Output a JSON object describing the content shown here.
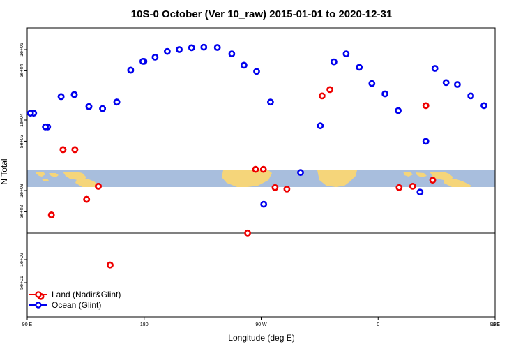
{
  "chart_data": {
    "type": "scatter",
    "title": "10S-0 October (Ver 10_raw)   2015-01-01 to 2020-12-31",
    "xlabel": "Longitude (deg E)",
    "ylabel": "N Total",
    "y_scale": "log",
    "x_tick_labels": [
      "90 E",
      "180",
      "90 W",
      "0",
      "90 E",
      "180"
    ],
    "upper_y_tick_labels": [
      "1e+05",
      "5e+04",
      "1e+04",
      "5e+03",
      "1e+03",
      "5e+02"
    ],
    "lower_y_tick_labels": [
      "1e+02",
      "5e+01"
    ],
    "colors": {
      "land": "#ee0000",
      "ocean": "#0000ee",
      "band": "#a8bedd",
      "landmass": "#f5d57a"
    },
    "legend": {
      "position": "bottom-left",
      "entries": [
        {
          "label": "Land (Nadir&Glint)",
          "color": "#ee0000"
        },
        {
          "label": "Ocean (Glint)",
          "color": "#0000ee"
        }
      ]
    },
    "series": [
      {
        "name": "Land (Nadir&Glint)",
        "color": "#ee0000",
        "points": [
          [
            108.6,
            450
          ],
          [
            117.6,
            3800
          ],
          [
            126.7,
            3800
          ],
          [
            135.7,
            750
          ],
          [
            144.7,
            1150
          ],
          [
            153.8,
            85
          ],
          [
            -100.4,
            250
          ],
          [
            -94.3,
            2000
          ],
          [
            -88.3,
            2000
          ],
          [
            -79.3,
            1100
          ],
          [
            -70.2,
            1050
          ],
          [
            -43.1,
            22000
          ],
          [
            -37.1,
            27000
          ],
          [
            16.1,
            1100
          ],
          [
            26.6,
            1150
          ],
          [
            36.7,
            16000
          ],
          [
            42.0,
            1400
          ],
          [
            108.6,
            450
          ],
          [
            117.6,
            3800
          ],
          [
            126.7,
            3800
          ],
          [
            135.7,
            750
          ],
          [
            144.7,
            1150
          ],
          [
            153.8,
            85
          ],
          [
            100.5,
            33
          ]
        ]
      },
      {
        "name": "Ocean (Glint)",
        "color": "#0000ee",
        "points": [
          [
            95.0,
            12500
          ],
          [
            105.7,
            8000
          ],
          [
            116.1,
            21500
          ],
          [
            126.2,
            23000
          ],
          [
            137.5,
            15500
          ],
          [
            148.0,
            14500
          ],
          [
            159.0,
            18000
          ],
          [
            169.6,
            51000
          ],
          [
            179.8,
            68000
          ],
          [
            188.4,
            78000
          ],
          [
            197.8,
            94000
          ],
          [
            207.0,
            100000
          ],
          [
            216.5,
            106000
          ],
          [
            225.9,
            108000
          ],
          [
            236.3,
            107000
          ],
          [
            -112.6,
            87000
          ],
          [
            -103.2,
            60000
          ],
          [
            -93.5,
            49000
          ],
          [
            -88.0,
            640
          ],
          [
            -82.8,
            18000
          ],
          [
            -44.5,
            8300
          ],
          [
            -59.7,
            1800
          ],
          [
            -34.0,
            67000
          ],
          [
            -24.6,
            87000
          ],
          [
            -14.5,
            56000
          ],
          [
            -4.8,
            33000
          ],
          [
            5.3,
            23500
          ],
          [
            15.5,
            13600
          ],
          [
            32.2,
            950
          ],
          [
            36.7,
            5000
          ],
          [
            43.7,
            54000
          ],
          [
            52.3,
            34000
          ],
          [
            61.0,
            32000
          ],
          [
            71.3,
            22000
          ],
          [
            81.4,
            16000
          ],
          [
            92.5,
            12500
          ],
          [
            104.0,
            8000
          ],
          [
            116.1,
            21500
          ],
          [
            126.2,
            23000
          ],
          [
            137.5,
            15500
          ],
          [
            148.0,
            14500
          ],
          [
            159.0,
            18000
          ],
          [
            169.6,
            51000
          ],
          [
            179.0,
            68000
          ]
        ]
      }
    ]
  }
}
